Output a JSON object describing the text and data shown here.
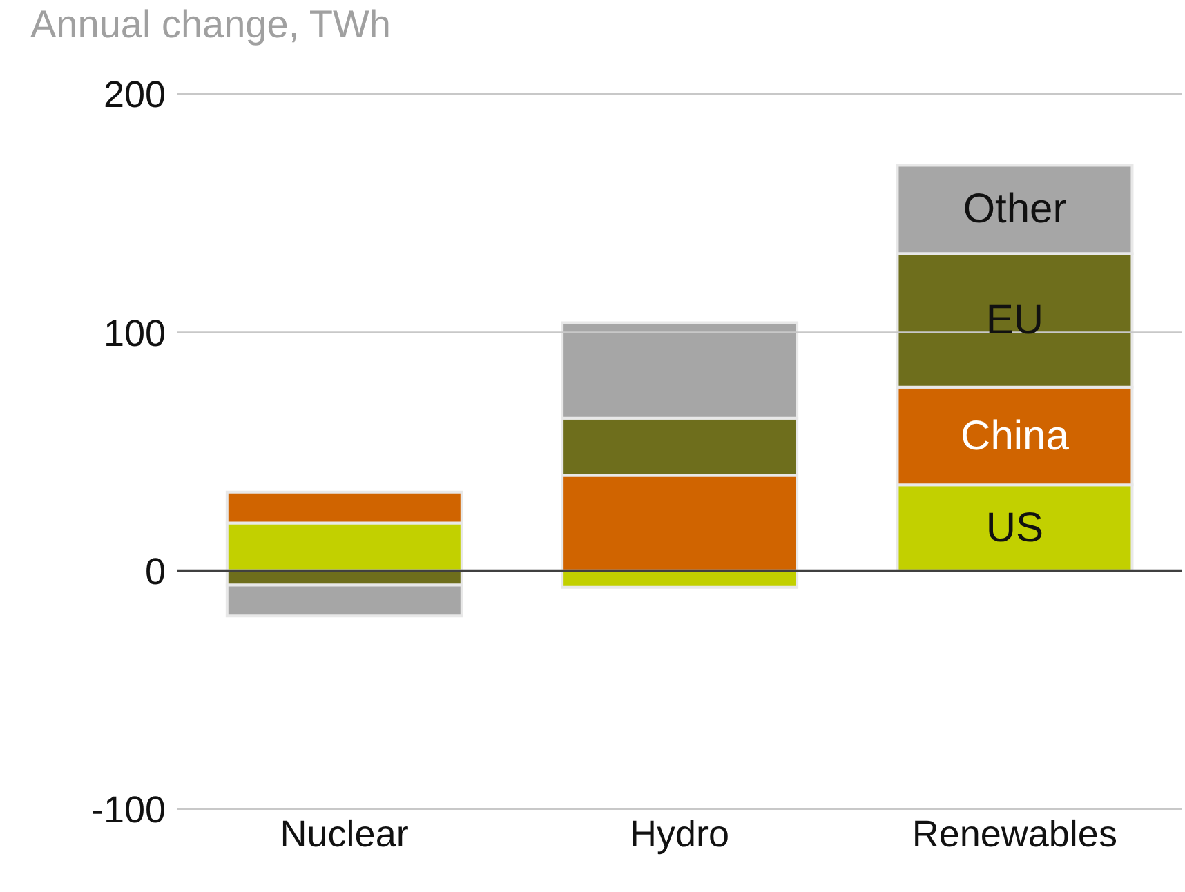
{
  "chart_data": {
    "type": "bar",
    "title": "Annual change, TWh",
    "categories": [
      "Nuclear",
      "Hydro",
      "Renewables"
    ],
    "stacked": true,
    "series": [
      {
        "name": "US",
        "color": "#c2d000",
        "values": [
          20,
          -7,
          36
        ]
      },
      {
        "name": "China",
        "color": "#d06400",
        "values": [
          13,
          40,
          41
        ]
      },
      {
        "name": "EU",
        "color": "#6e6e1c",
        "values": [
          -6,
          24,
          56
        ]
      },
      {
        "name": "Other",
        "color": "#a6a6a6",
        "values": [
          -13,
          40,
          37
        ]
      }
    ],
    "ylim": [
      -100,
      200
    ],
    "yticks": [
      -100,
      0,
      100,
      200
    ],
    "ref_lines": [
      {
        "axis": "y",
        "value": 0,
        "color": "#404040"
      },
      {
        "axis": "y",
        "value": 100,
        "color": "#c8c8c8"
      }
    ]
  }
}
